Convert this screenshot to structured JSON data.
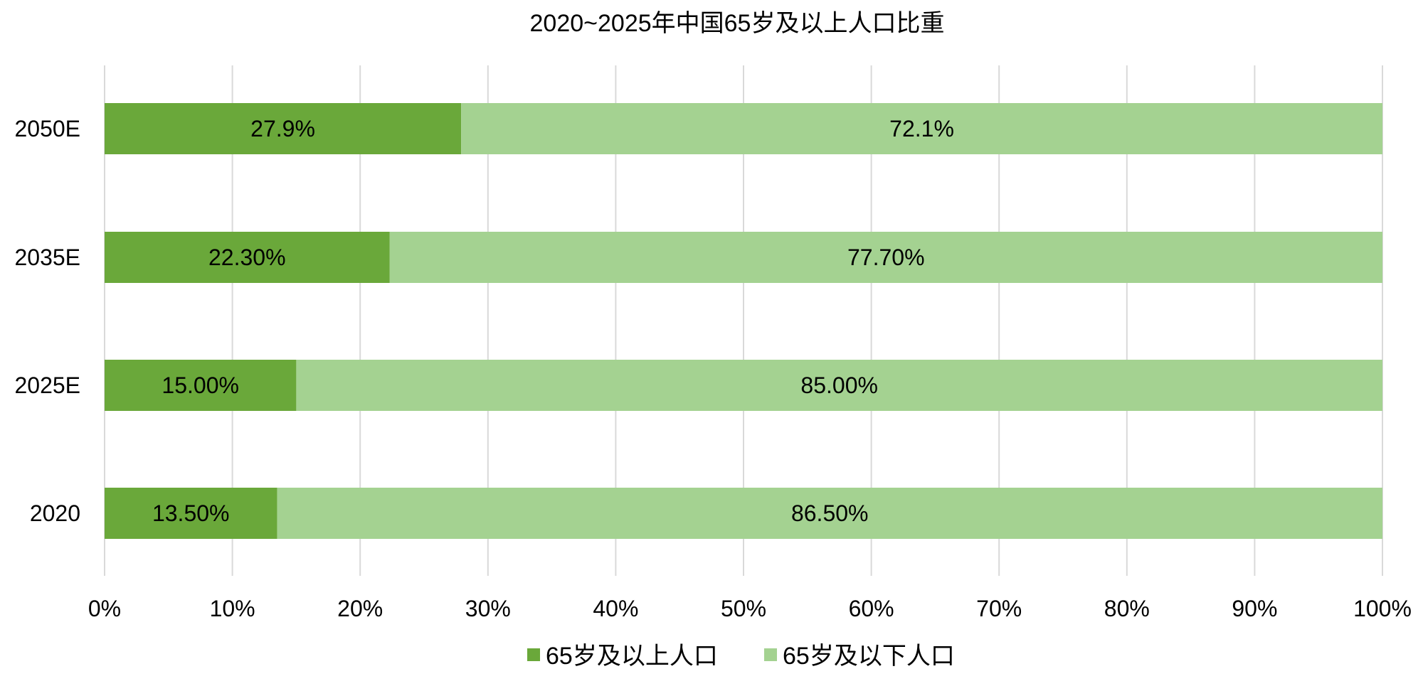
{
  "chart_data": {
    "type": "bar",
    "orientation": "horizontal",
    "stacked": "percent",
    "title": "2020~2025年中国65岁及以上人口比重",
    "categories": [
      "2050E",
      "2035E",
      "2025E",
      "2020"
    ],
    "series": [
      {
        "name": "65岁及以上人口",
        "color": "#6aa83a",
        "values": [
          27.9,
          22.3,
          15.0,
          13.5
        ],
        "labels": [
          "27.9%",
          "22.30%",
          "15.00%",
          "13.50%"
        ]
      },
      {
        "name": "65岁及以下人口",
        "color": "#a4d291",
        "values": [
          72.1,
          77.7,
          85.0,
          86.5
        ],
        "labels": [
          "72.1%",
          "77.70%",
          "85.00%",
          "86.50%"
        ]
      }
    ],
    "xlim": [
      0,
      100
    ],
    "xticks": [
      0,
      10,
      20,
      30,
      40,
      50,
      60,
      70,
      80,
      90,
      100
    ],
    "xtick_labels": [
      "0%",
      "10%",
      "20%",
      "30%",
      "40%",
      "50%",
      "60%",
      "70%",
      "80%",
      "90%",
      "100%"
    ],
    "grid": "vertical",
    "legend_position": "bottom"
  }
}
